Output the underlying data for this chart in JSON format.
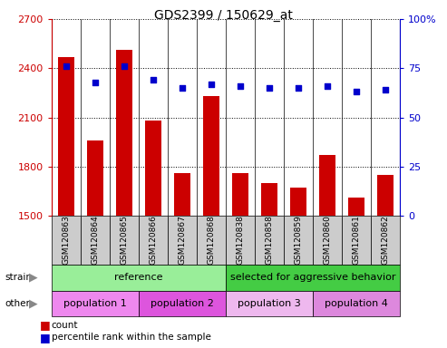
{
  "title": "GDS2399 / 150629_at",
  "samples": [
    "GSM120863",
    "GSM120864",
    "GSM120865",
    "GSM120866",
    "GSM120867",
    "GSM120868",
    "GSM120838",
    "GSM120858",
    "GSM120859",
    "GSM120860",
    "GSM120861",
    "GSM120862"
  ],
  "count_values": [
    2470,
    1960,
    2510,
    2080,
    1760,
    2230,
    1760,
    1700,
    1670,
    1870,
    1610,
    1750
  ],
  "percentile_values": [
    76,
    68,
    76,
    69,
    65,
    67,
    66,
    65,
    65,
    66,
    63,
    64
  ],
  "ylim_left": [
    1500,
    2700
  ],
  "ylim_right": [
    0,
    100
  ],
  "yticks_left": [
    1500,
    1800,
    2100,
    2400,
    2700
  ],
  "yticks_right": [
    0,
    25,
    50,
    75,
    100
  ],
  "bar_color": "#cc0000",
  "dot_color": "#0000cc",
  "bar_width": 0.55,
  "strain_groups": [
    {
      "label": "reference",
      "start": 0,
      "end": 6,
      "color": "#99ee99"
    },
    {
      "label": "selected for aggressive behavior",
      "start": 6,
      "end": 12,
      "color": "#44cc44"
    }
  ],
  "other_groups": [
    {
      "label": "population 1",
      "start": 0,
      "end": 3,
      "color": "#ee88ee"
    },
    {
      "label": "population 2",
      "start": 3,
      "end": 6,
      "color": "#dd55dd"
    },
    {
      "label": "population 3",
      "start": 6,
      "end": 9,
      "color": "#eeb8ee"
    },
    {
      "label": "population 4",
      "start": 9,
      "end": 12,
      "color": "#dd88dd"
    }
  ],
  "tick_color_left": "#cc0000",
  "tick_color_right": "#0000cc",
  "xticklabel_bg": "#cccccc",
  "grid_linestyle": "dotted",
  "fig_width": 4.93,
  "fig_height": 3.84
}
